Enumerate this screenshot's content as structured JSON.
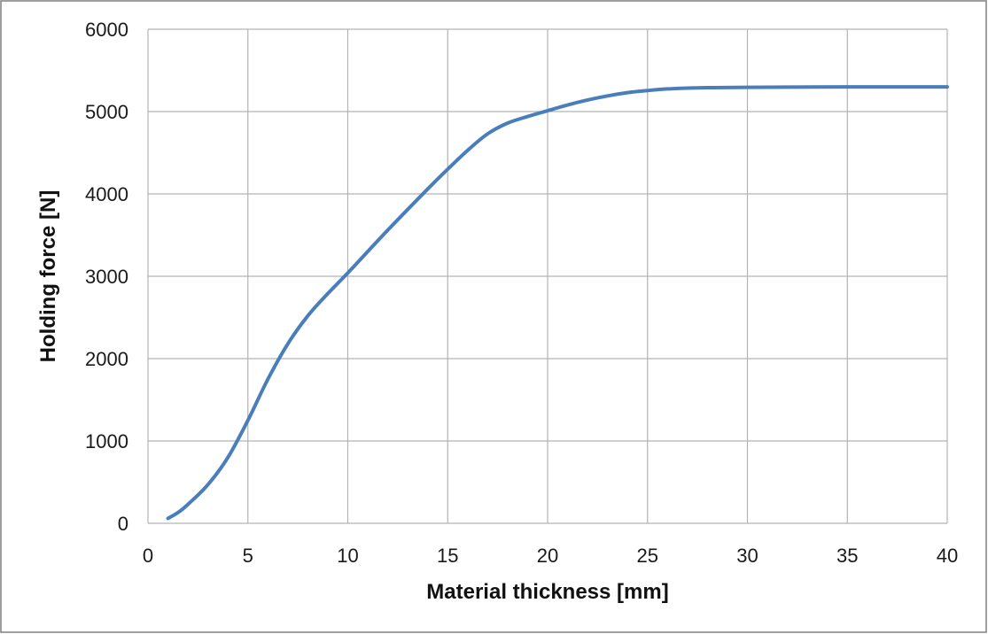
{
  "chart_data": {
    "type": "line",
    "title": "",
    "xlabel": "Material thickness [mm]",
    "ylabel": "Holding force [N]",
    "xlim": [
      0,
      40
    ],
    "ylim": [
      0,
      6000
    ],
    "x_ticks": [
      0,
      5,
      10,
      15,
      20,
      25,
      30,
      35,
      40
    ],
    "y_ticks": [
      0,
      1000,
      2000,
      3000,
      4000,
      5000,
      6000
    ],
    "grid": true,
    "legend": "none",
    "series": [
      {
        "color": "#4a7ebb",
        "x": [
          1,
          1.5,
          2,
          3,
          4,
          5,
          6,
          7,
          8,
          9,
          10,
          12,
          14,
          15,
          16,
          17,
          18,
          19,
          20,
          21,
          22,
          23,
          24,
          25,
          26,
          27,
          28,
          30,
          35,
          40
        ],
        "y": [
          60,
          130,
          230,
          470,
          800,
          1250,
          1750,
          2180,
          2520,
          2790,
          3040,
          3560,
          4060,
          4300,
          4530,
          4730,
          4860,
          4940,
          5010,
          5080,
          5140,
          5190,
          5230,
          5255,
          5275,
          5285,
          5290,
          5295,
          5300,
          5300
        ]
      }
    ]
  },
  "colors": {
    "frame": "#7f7f7f",
    "grid": "#b3b3b3",
    "line": "#4a7ebb"
  }
}
